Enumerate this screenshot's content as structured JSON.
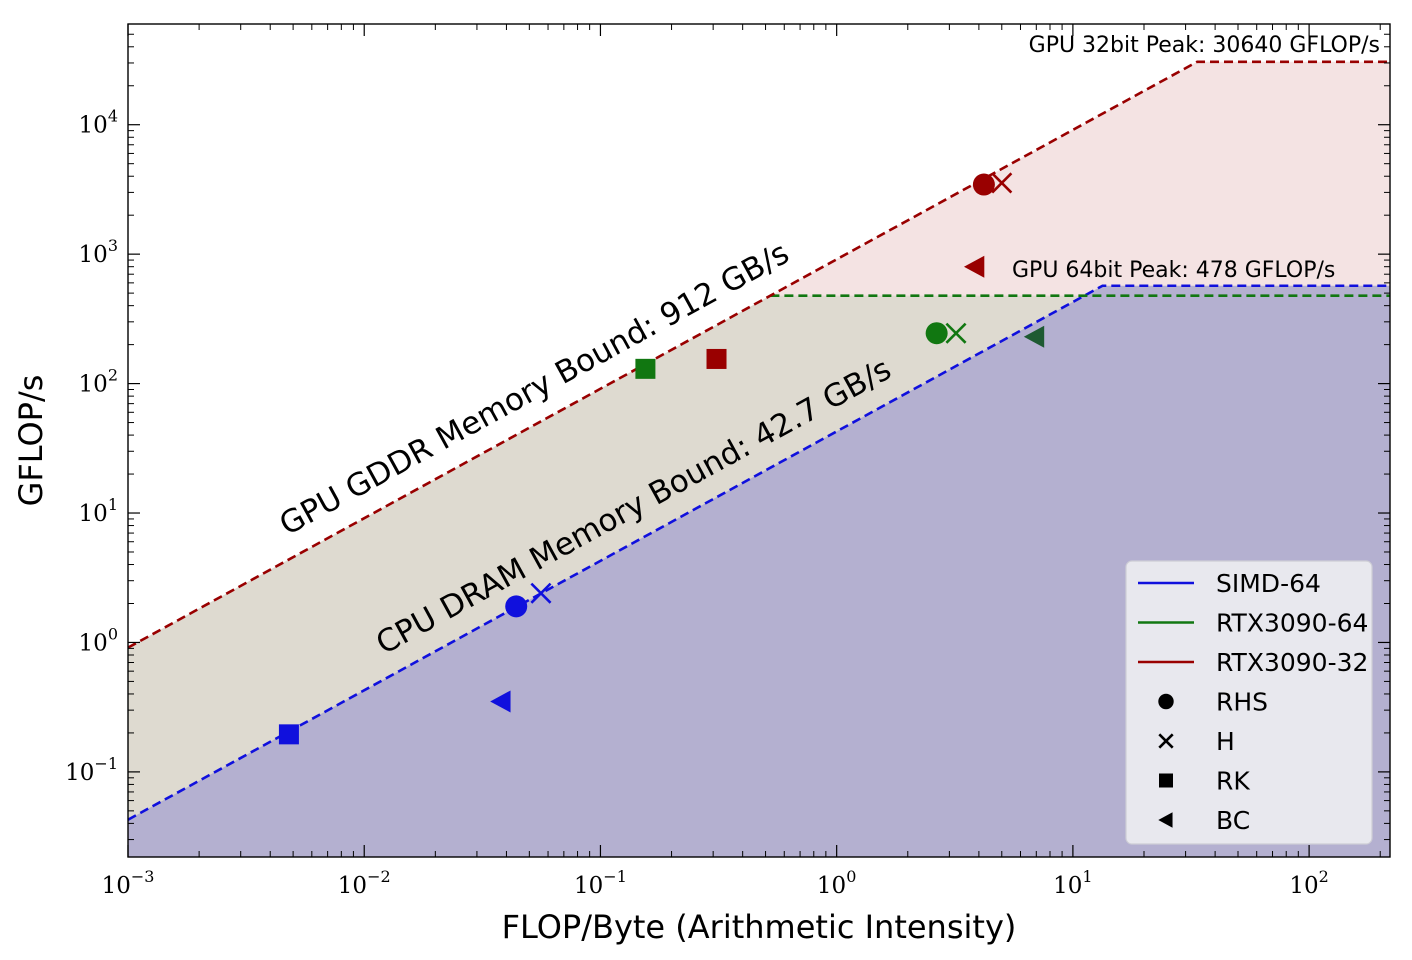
{
  "chart_data": {
    "type": "line",
    "title": "",
    "xlabel": "FLOP/Byte (Arithmetic Intensity)",
    "ylabel": "GFLOP/s",
    "xscale": "log",
    "yscale": "log",
    "xlim": [
      0.001,
      220
    ],
    "ylim": [
      0.022,
      60000
    ],
    "x_ticks": [
      0.001,
      0.01,
      0.1,
      1,
      10,
      100
    ],
    "x_tick_labels": [
      {
        "base": "10",
        "exp": "−3"
      },
      {
        "base": "10",
        "exp": "−2"
      },
      {
        "base": "10",
        "exp": "−1"
      },
      {
        "base": "10",
        "exp": "0"
      },
      {
        "base": "10",
        "exp": "1"
      },
      {
        "base": "10",
        "exp": "2"
      }
    ],
    "y_ticks": [
      0.1,
      1,
      10,
      100,
      1000,
      10000
    ],
    "y_tick_labels": [
      {
        "base": "10",
        "exp": "−1"
      },
      {
        "base": "10",
        "exp": "0"
      },
      {
        "base": "10",
        "exp": "1"
      },
      {
        "base": "10",
        "exp": "2"
      },
      {
        "base": "10",
        "exp": "3"
      },
      {
        "base": "10",
        "exp": "4"
      }
    ],
    "rooflines": [
      {
        "name": "SIMD-64",
        "color": "#1010dd",
        "fill": "#b4b0d0",
        "bandwidth_gbs": 42.7,
        "peak_gflops": 570
      },
      {
        "name": "RTX3090-64",
        "color": "#117711",
        "fill": "#dedad0",
        "bandwidth_gbs": 912,
        "peak_gflops": 478
      },
      {
        "name": "RTX3090-32",
        "color": "#990000",
        "fill": "#f4e3e3",
        "bandwidth_gbs": 912,
        "peak_gflops": 30640
      }
    ],
    "annotations": {
      "gpu32_peak": "GPU 32bit Peak: 30640 GFLOP/s",
      "gpu64_peak": "GPU 64bit Peak: 478 GFLOP/s",
      "gpu_memory": "GPU GDDR Memory Bound: 912 GB/s",
      "cpu_memory": "CPU DRAM Memory Bound: 42.7 GB/s"
    },
    "points": [
      {
        "series": "SIMD-64",
        "kernel": "RHS",
        "marker": "circle",
        "x": 0.044,
        "y": 1.9
      },
      {
        "series": "SIMD-64",
        "kernel": "H",
        "marker": "x",
        "x": 0.056,
        "y": 2.4
      },
      {
        "series": "SIMD-64",
        "kernel": "RK",
        "marker": "square",
        "x": 0.0048,
        "y": 0.195
      },
      {
        "series": "SIMD-64",
        "kernel": "BC",
        "marker": "triangle-left",
        "x": 0.038,
        "y": 0.35
      },
      {
        "series": "RTX3090-64",
        "kernel": "RHS",
        "marker": "circle",
        "x": 2.65,
        "y": 245
      },
      {
        "series": "RTX3090-64",
        "kernel": "H",
        "marker": "x",
        "x": 3.2,
        "y": 245
      },
      {
        "series": "RTX3090-64",
        "kernel": "RK",
        "marker": "square",
        "x": 0.155,
        "y": 130
      },
      {
        "series": "RTX3090-64",
        "kernel": "BC",
        "marker": "triangle-left",
        "x": 6.9,
        "y": 230
      },
      {
        "series": "RTX3090-32",
        "kernel": "RHS",
        "marker": "circle",
        "x": 4.2,
        "y": 3450
      },
      {
        "series": "RTX3090-32",
        "kernel": "H",
        "marker": "x",
        "x": 5.0,
        "y": 3550
      },
      {
        "series": "RTX3090-32",
        "kernel": "RK",
        "marker": "square",
        "x": 0.31,
        "y": 155
      },
      {
        "series": "RTX3090-32",
        "kernel": "BC",
        "marker": "triangle-left",
        "x": 3.85,
        "y": 800
      }
    ],
    "legend": {
      "position": "lower right",
      "entries": [
        {
          "label": "SIMD-64",
          "kind": "line",
          "color": "#1010dd"
        },
        {
          "label": "RTX3090-64",
          "kind": "line",
          "color": "#117711"
        },
        {
          "label": "RTX3090-32",
          "kind": "line",
          "color": "#990000"
        },
        {
          "label": "RHS",
          "kind": "marker",
          "marker": "circle"
        },
        {
          "label": "H",
          "kind": "marker",
          "marker": "x"
        },
        {
          "label": "RK",
          "kind": "marker",
          "marker": "square"
        },
        {
          "label": "BC",
          "kind": "marker",
          "marker": "triangle-left"
        }
      ]
    }
  }
}
